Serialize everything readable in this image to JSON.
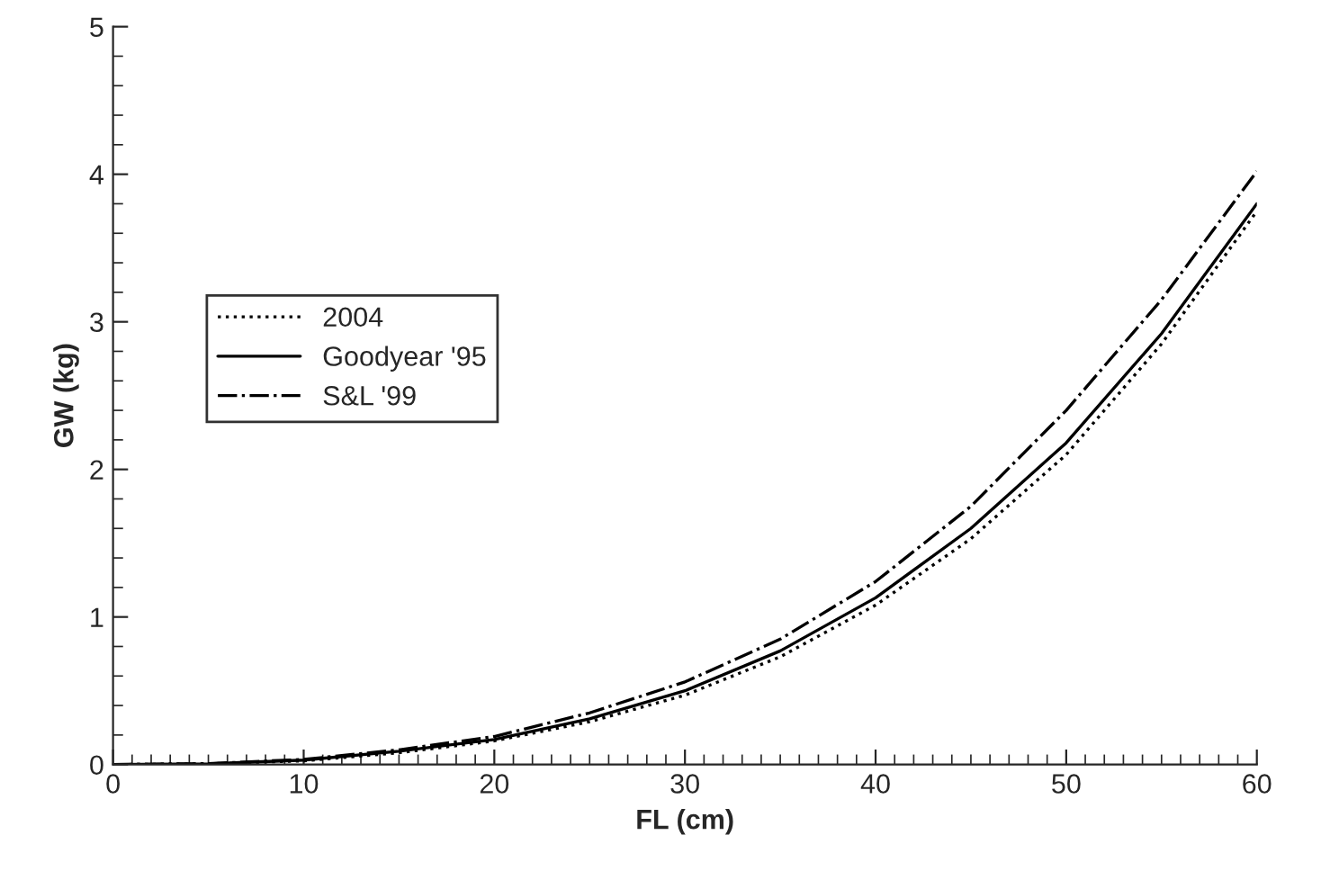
{
  "chart_data": {
    "type": "line",
    "xlabel": "FL (cm)",
    "ylabel": "GW (kg)",
    "x": [
      0,
      5,
      10,
      15,
      20,
      25,
      30,
      35,
      40,
      45,
      50,
      55,
      60
    ],
    "series": [
      {
        "name": "2004",
        "color": "#000000",
        "line_style": "dotted",
        "values": [
          0,
          0.005,
          0.025,
          0.08,
          0.16,
          0.29,
          0.47,
          0.73,
          1.08,
          1.53,
          2.1,
          2.85,
          3.75
        ]
      },
      {
        "name": "Goodyear '95",
        "color": "#000000",
        "line_style": "solid",
        "values": [
          0,
          0.005,
          0.03,
          0.09,
          0.17,
          0.31,
          0.5,
          0.77,
          1.13,
          1.6,
          2.18,
          2.92,
          3.8
        ]
      },
      {
        "name": "S&L '99",
        "color": "#000000",
        "line_style": "dashdot",
        "values": [
          0,
          0.006,
          0.035,
          0.1,
          0.19,
          0.35,
          0.56,
          0.85,
          1.24,
          1.75,
          2.4,
          3.15,
          4.02
        ]
      }
    ],
    "xlim": [
      0,
      60
    ],
    "xticks": [
      0,
      10,
      20,
      30,
      40,
      50,
      60
    ],
    "ylim": [
      0,
      5
    ],
    "yticks": [
      0,
      1,
      2,
      3,
      4,
      5
    ],
    "grid": false,
    "legend": "left",
    "marker": "none"
  }
}
